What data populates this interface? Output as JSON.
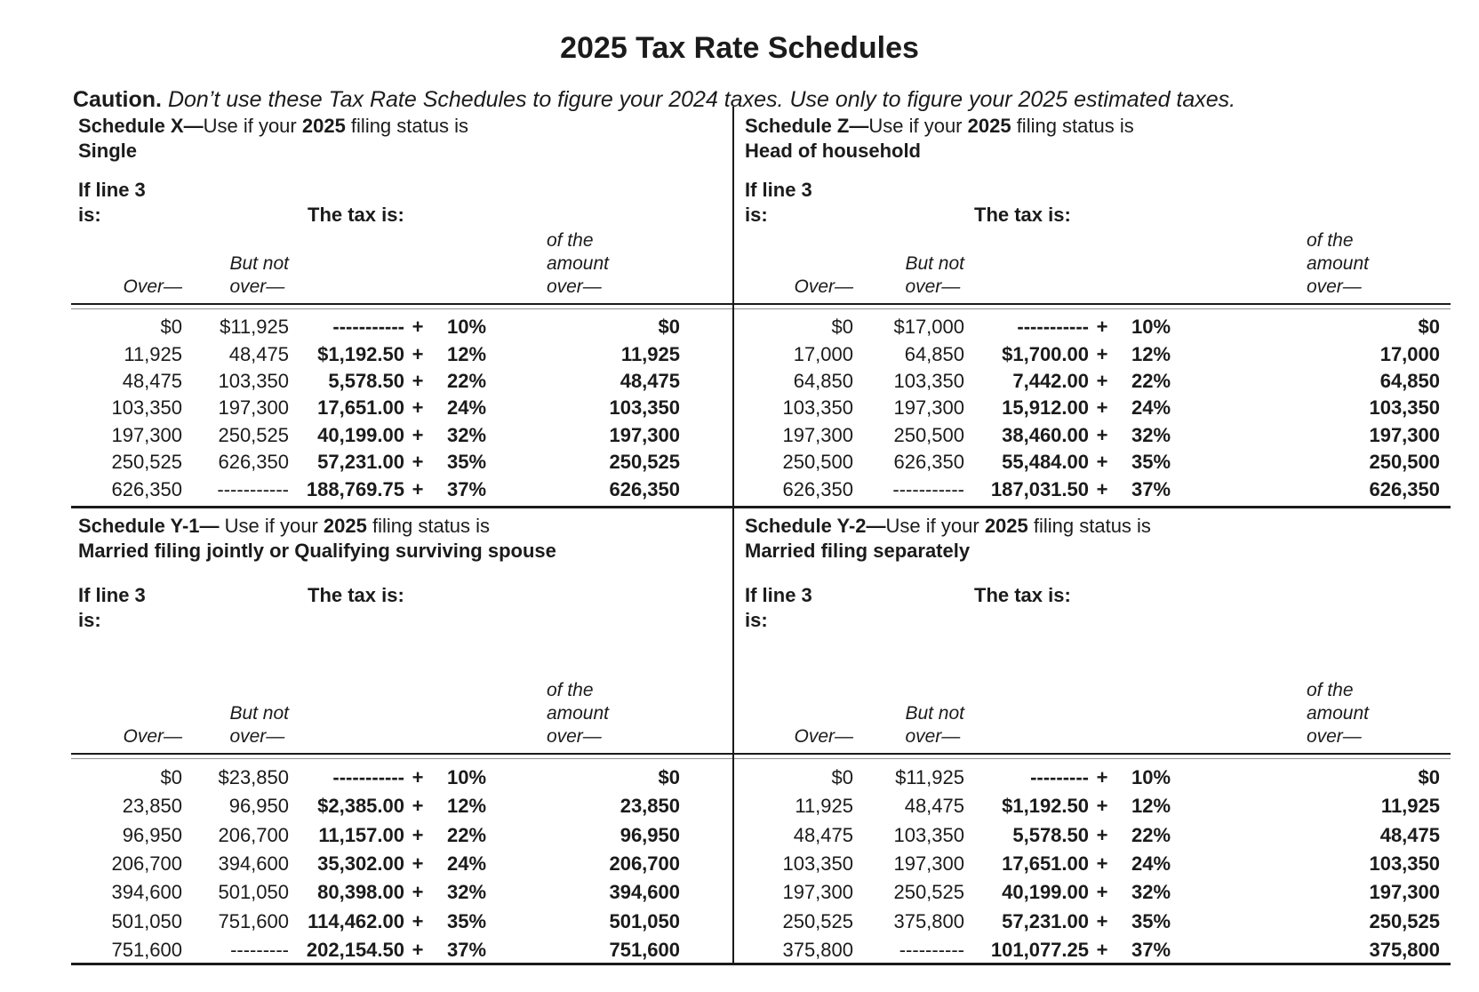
{
  "colors": {
    "ink": "#1b1b1b",
    "paper": "#ffffff"
  },
  "page": {
    "title": "2025 Tax Rate Schedules",
    "caution_label": "Caution.",
    "caution_text": "Don’t use these Tax Rate Schedules to figure your 2024 taxes. Use only to figure your 2025 estimated taxes."
  },
  "labels": {
    "if_line_3": "If line 3",
    "is": "is:",
    "the_tax_is": "The tax is:",
    "over_cap": "Over—",
    "but_not": "But not",
    "over_low": "over—",
    "of_the": "of the",
    "amount": "amount"
  },
  "schedules": [
    {
      "title_bold": "Schedule X—",
      "title_use": "Use if your ",
      "title_year": "2025",
      "title_rest": " filing status is",
      "filing_status": "Single",
      "rows": [
        {
          "over": "$0",
          "but_not_over": "$11,925",
          "tax": "-----------",
          "plus": "+",
          "rate": "10%",
          "of_amount_over": "$0"
        },
        {
          "over": "11,925",
          "but_not_over": "48,475",
          "tax": "$1,192.50",
          "plus": "+",
          "rate": "12%",
          "of_amount_over": "11,925"
        },
        {
          "over": "48,475",
          "but_not_over": "103,350",
          "tax": "5,578.50",
          "plus": "+",
          "rate": "22%",
          "of_amount_over": "48,475"
        },
        {
          "over": "103,350",
          "but_not_over": "197,300",
          "tax": "17,651.00",
          "plus": "+",
          "rate": "24%",
          "of_amount_over": "103,350"
        },
        {
          "over": "197,300",
          "but_not_over": "250,525",
          "tax": "40,199.00",
          "plus": "+",
          "rate": "32%",
          "of_amount_over": "197,300"
        },
        {
          "over": "250,525",
          "but_not_over": "626,350",
          "tax": "57,231.00",
          "plus": "+",
          "rate": "35%",
          "of_amount_over": "250,525"
        },
        {
          "over": "626,350",
          "but_not_over": "-----------",
          "tax": "188,769.75",
          "plus": "+",
          "rate": "37%",
          "of_amount_over": "626,350"
        }
      ]
    },
    {
      "title_bold": "Schedule Z—",
      "title_use": "Use if your ",
      "title_year": "2025",
      "title_rest": " filing status is",
      "filing_status": "Head of household",
      "rows": [
        {
          "over": "$0",
          "but_not_over": "$17,000",
          "tax": "-----------",
          "plus": "+",
          "rate": "10%",
          "of_amount_over": "$0"
        },
        {
          "over": "17,000",
          "but_not_over": "64,850",
          "tax": "$1,700.00",
          "plus": "+",
          "rate": "12%",
          "of_amount_over": "17,000"
        },
        {
          "over": "64,850",
          "but_not_over": "103,350",
          "tax": "7,442.00",
          "plus": "+",
          "rate": "22%",
          "of_amount_over": "64,850"
        },
        {
          "over": "103,350",
          "but_not_over": "197,300",
          "tax": "15,912.00",
          "plus": "+",
          "rate": "24%",
          "of_amount_over": "103,350"
        },
        {
          "over": "197,300",
          "but_not_over": "250,500",
          "tax": "38,460.00",
          "plus": "+",
          "rate": "32%",
          "of_amount_over": "197,300"
        },
        {
          "over": "250,500",
          "but_not_over": "626,350",
          "tax": "55,484.00",
          "plus": "+",
          "rate": "35%",
          "of_amount_over": "250,500"
        },
        {
          "over": "626,350",
          "but_not_over": "-----------",
          "tax": "187,031.50",
          "plus": "+",
          "rate": "37%",
          "of_amount_over": "626,350"
        }
      ]
    },
    {
      "title_bold": "Schedule Y-1— ",
      "title_use": "Use if your ",
      "title_year": "2025",
      "title_rest": " filing status is",
      "filing_status": "Married filing jointly or Qualifying surviving spouse",
      "rows": [
        {
          "over": "$0",
          "but_not_over": "$23,850",
          "tax": "-----------",
          "plus": "+",
          "rate": "10%",
          "of_amount_over": "$0"
        },
        {
          "over": "23,850",
          "but_not_over": "96,950",
          "tax": "$2,385.00",
          "plus": "+",
          "rate": "12%",
          "of_amount_over": "23,850"
        },
        {
          "over": "96,950",
          "but_not_over": "206,700",
          "tax": "11,157.00",
          "plus": "+",
          "rate": "22%",
          "of_amount_over": "96,950"
        },
        {
          "over": "206,700",
          "but_not_over": "394,600",
          "tax": "35,302.00",
          "plus": "+",
          "rate": "24%",
          "of_amount_over": "206,700"
        },
        {
          "over": "394,600",
          "but_not_over": "501,050",
          "tax": "80,398.00",
          "plus": "+",
          "rate": "32%",
          "of_amount_over": "394,600"
        },
        {
          "over": "501,050",
          "but_not_over": "751,600",
          "tax": "114,462.00",
          "plus": "+",
          "rate": "35%",
          "of_amount_over": "501,050"
        },
        {
          "over": "751,600",
          "but_not_over": "---------",
          "tax": "202,154.50",
          "plus": "+",
          "rate": "37%",
          "of_amount_over": "751,600"
        }
      ]
    },
    {
      "title_bold": "Schedule Y-2—",
      "title_use": "Use if your ",
      "title_year": "2025",
      "title_rest": " filing status is",
      "filing_status": "Married filing separately",
      "rows": [
        {
          "over": "$0",
          "but_not_over": "$11,925",
          "tax": "---------",
          "plus": "+",
          "rate": "10%",
          "of_amount_over": "$0"
        },
        {
          "over": "11,925",
          "but_not_over": "48,475",
          "tax": "$1,192.50",
          "plus": "+",
          "rate": "12%",
          "of_amount_over": "11,925"
        },
        {
          "over": "48,475",
          "but_not_over": "103,350",
          "tax": "5,578.50",
          "plus": "+",
          "rate": "22%",
          "of_amount_over": "48,475"
        },
        {
          "over": "103,350",
          "but_not_over": "197,300",
          "tax": "17,651.00",
          "plus": "+",
          "rate": "24%",
          "of_amount_over": "103,350"
        },
        {
          "over": "197,300",
          "but_not_over": "250,525",
          "tax": "40,199.00",
          "plus": "+",
          "rate": "32%",
          "of_amount_over": "197,300"
        },
        {
          "over": "250,525",
          "but_not_over": "375,800",
          "tax": "57,231.00",
          "plus": "+",
          "rate": "35%",
          "of_amount_over": "250,525"
        },
        {
          "over": "375,800",
          "but_not_over": "----------",
          "tax": "101,077.25",
          "plus": "+",
          "rate": "37%",
          "of_amount_over": "375,800"
        }
      ]
    }
  ]
}
